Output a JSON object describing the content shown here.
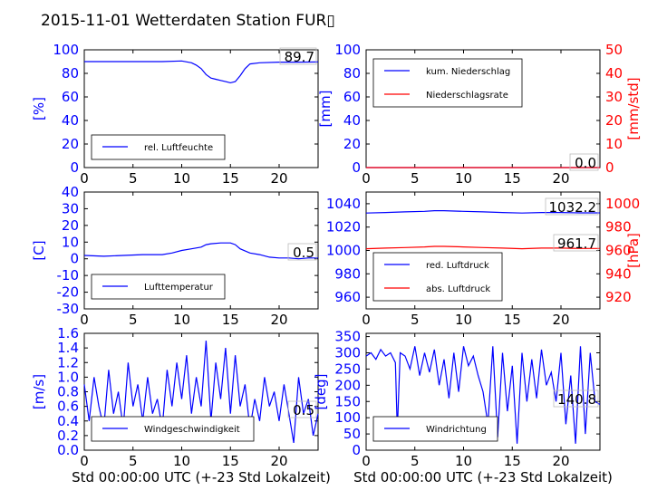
{
  "chart_data": {
    "title": "2015-11-01 Wetterdaten Station FUR▯",
    "type": "line",
    "colors": {
      "blue": "#0000ff",
      "red": "#ff0000",
      "axis": "#000000"
    },
    "panels": [
      {
        "id": "humidity",
        "xlim": [
          0,
          24
        ],
        "xticks": [
          0,
          5,
          10,
          15,
          20
        ],
        "ylim": [
          0,
          100
        ],
        "yticks": [
          0,
          20,
          40,
          60,
          80,
          100
        ],
        "ylabel": "[%]",
        "xlabel": "",
        "legend": [
          "rel. Luftfeuchte"
        ],
        "annotation": "89.7",
        "series": [
          {
            "name": "rel. Luftfeuchte",
            "color": "#0000ff",
            "x": [
              0,
              2,
              4,
              6,
              8,
              10,
              11,
              11.5,
              12,
              12.5,
              13,
              13.5,
              14,
              14.5,
              15,
              15.5,
              16,
              16.5,
              17,
              18,
              20,
              22,
              24
            ],
            "y": [
              90,
              90,
              90,
              90,
              90,
              90.5,
              89,
              87,
              84,
              79,
              76,
              75,
              74,
              73,
              72,
              73,
              78,
              84,
              88,
              89,
              89.5,
              89.5,
              89.7
            ]
          }
        ]
      },
      {
        "id": "precip",
        "xlim": [
          0,
          24
        ],
        "xticks": [
          0,
          5,
          10,
          15,
          20
        ],
        "ylim": [
          0,
          100
        ],
        "yticks": [
          0,
          20,
          40,
          60,
          80,
          100
        ],
        "ylabel": "[mm]",
        "ylim2": [
          0,
          50
        ],
        "yticks2": [
          0,
          10,
          20,
          30,
          40,
          50
        ],
        "ylabel2": "[mm/std]",
        "legend": [
          "kum. Niederschlag",
          "Niederschlagsrate"
        ],
        "annotation": "0.0",
        "annotation2": "0.0",
        "series": [
          {
            "name": "kum. Niederschlag",
            "color": "#0000ff",
            "axis": "left",
            "x": [
              0,
              24
            ],
            "y": [
              0,
              0
            ]
          },
          {
            "name": "Niederschlagsrate",
            "color": "#ff0000",
            "axis": "right",
            "x": [
              0,
              24
            ],
            "y": [
              0,
              0
            ]
          }
        ]
      },
      {
        "id": "temperature",
        "xlim": [
          0,
          24
        ],
        "xticks": [
          0,
          5,
          10,
          15,
          20
        ],
        "ylim": [
          -30,
          40
        ],
        "yticks": [
          -30,
          -20,
          -10,
          0,
          10,
          20,
          30,
          40
        ],
        "ylabel": "[C]",
        "legend": [
          "Lufttemperatur"
        ],
        "annotation": "0.5",
        "series": [
          {
            "name": "Lufttemperatur",
            "color": "#0000ff",
            "x": [
              0,
              2,
              4,
              6,
              8,
              9,
              10,
              11,
              12,
              12.5,
              13,
              14,
              15,
              15.5,
              16,
              17,
              18,
              19,
              20,
              21,
              22,
              23,
              24
            ],
            "y": [
              2,
              1.5,
              2,
              2.5,
              2.5,
              3.5,
              5,
              6,
              7,
              8.5,
              9,
              9.5,
              9.5,
              8.5,
              6,
              3.5,
              2.5,
              1,
              0.5,
              0.5,
              0,
              0.5,
              0.5
            ]
          }
        ]
      },
      {
        "id": "pressure",
        "xlim": [
          0,
          24
        ],
        "xticks": [
          0,
          5,
          10,
          15,
          20
        ],
        "ylim": [
          950,
          1050
        ],
        "yticks": [
          960,
          980,
          1000,
          1020,
          1040
        ],
        "ylabel": "",
        "ylim2": [
          910,
          1010
        ],
        "yticks2": [
          920,
          940,
          960,
          980,
          1000
        ],
        "ylabel2": "[hPa]",
        "legend": [
          "red. Luftdruck",
          "abs. Luftdruck"
        ],
        "annotation": "1032.2",
        "annotation2": "961.7",
        "series": [
          {
            "name": "red. Luftdruck",
            "color": "#0000ff",
            "axis": "left",
            "x": [
              0,
              2,
              4,
              6,
              7,
              8,
              10,
              12,
              14,
              16,
              18,
              20,
              22,
              24
            ],
            "y": [
              1032,
              1032.5,
              1033,
              1033.5,
              1034,
              1034,
              1033.5,
              1033,
              1032.5,
              1032,
              1032.5,
              1032.5,
              1032.2,
              1032.2
            ]
          },
          {
            "name": "abs. Luftdruck",
            "color": "#ff0000",
            "axis": "right",
            "x": [
              0,
              2,
              4,
              6,
              7,
              8,
              10,
              12,
              14,
              16,
              18,
              20,
              22,
              24
            ],
            "y": [
              961.5,
              962,
              962.5,
              963,
              963.5,
              963.5,
              963,
              962.5,
              962,
              961.5,
              962,
              962,
              961.7,
              961.7
            ]
          }
        ]
      },
      {
        "id": "windspeed",
        "xlim": [
          0,
          24
        ],
        "xticks": [
          0,
          5,
          10,
          15,
          20
        ],
        "ylim": [
          0,
          1.6
        ],
        "yticks": [
          0.0,
          0.2,
          0.4,
          0.6,
          0.8,
          1.0,
          1.2,
          1.4,
          1.6
        ],
        "ylabel": "[m/s]",
        "xlabel": "Std 00:00:00 UTC (+-23 Std Lokalzeit)",
        "legend": [
          "Windgeschwindigkeit"
        ],
        "annotation": "0.5",
        "series": [
          {
            "name": "Windgeschwindigkeit",
            "color": "#0000ff",
            "x": [
              0,
              0.5,
              1,
              1.5,
              2,
              2.5,
              3,
              3.5,
              4,
              4.5,
              5,
              5.5,
              6,
              6.5,
              7,
              7.5,
              8,
              8.5,
              9,
              9.5,
              10,
              10.5,
              11,
              11.5,
              12,
              12.5,
              13,
              13.5,
              14,
              14.5,
              15,
              15.5,
              16,
              16.5,
              17,
              17.5,
              18,
              18.5,
              19,
              19.5,
              20,
              20.5,
              21,
              21.5,
              22,
              22.5,
              23,
              23.5,
              24
            ],
            "y": [
              0.9,
              0.4,
              1.0,
              0.6,
              0.3,
              1.1,
              0.5,
              0.8,
              0.3,
              1.2,
              0.6,
              0.9,
              0.4,
              1.0,
              0.5,
              0.7,
              0.3,
              1.1,
              0.6,
              1.2,
              0.7,
              1.3,
              0.5,
              1.0,
              0.6,
              1.5,
              0.4,
              1.2,
              0.7,
              1.4,
              0.5,
              1.3,
              0.6,
              0.9,
              0.3,
              0.7,
              0.4,
              1.0,
              0.6,
              0.8,
              0.4,
              0.9,
              0.5,
              0.1,
              1.0,
              0.5,
              0.7,
              0.2,
              0.5
            ]
          }
        ]
      },
      {
        "id": "winddir",
        "xlim": [
          0,
          24
        ],
        "xticks": [
          0,
          5,
          10,
          15,
          20
        ],
        "ylim": [
          0,
          360
        ],
        "yticks": [
          0,
          50,
          100,
          150,
          200,
          250,
          300,
          350
        ],
        "ylabel": "[deg]",
        "xlabel": "Std 00:00:00 UTC (+-23 Std Lokalzeit)",
        "legend": [
          "Windrichtung"
        ],
        "annotation": "140.8",
        "series": [
          {
            "name": "Windrichtung",
            "color": "#0000ff",
            "x": [
              0,
              0.5,
              1,
              1.5,
              2,
              2.5,
              3,
              3.2,
              3.5,
              4,
              4.5,
              5,
              5.5,
              6,
              6.5,
              7,
              7.5,
              8,
              8.5,
              9,
              9.5,
              10,
              10.5,
              11,
              11.5,
              12,
              12.5,
              13,
              13.5,
              14,
              14.5,
              15,
              15.5,
              16,
              16.5,
              17,
              17.5,
              18,
              18.5,
              19,
              19.5,
              20,
              20.5,
              21,
              21.5,
              22,
              22.5,
              23,
              23.5,
              24
            ],
            "y": [
              290,
              300,
              280,
              310,
              290,
              300,
              270,
              60,
              300,
              290,
              250,
              320,
              230,
              300,
              240,
              310,
              200,
              280,
              160,
              300,
              180,
              320,
              260,
              290,
              230,
              180,
              80,
              320,
              40,
              300,
              120,
              260,
              20,
              300,
              150,
              280,
              160,
              310,
              200,
              240,
              150,
              300,
              80,
              230,
              20,
              320,
              50,
              300,
              150,
              141
            ]
          }
        ]
      }
    ]
  }
}
